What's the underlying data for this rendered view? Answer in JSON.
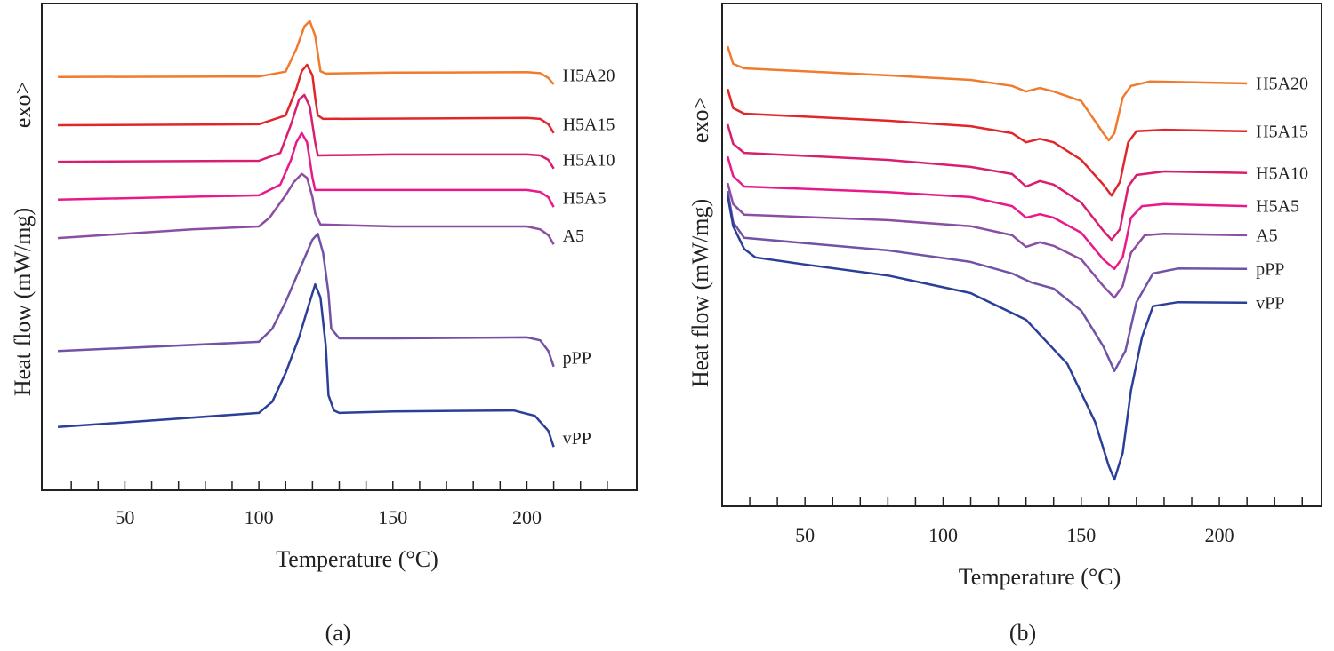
{
  "chart_data": [
    {
      "type": "line",
      "title": "(a)",
      "xlabel": "Temperature (°C)",
      "ylabel": "Heat flow (mW/mg)",
      "annotation": "exo>",
      "xlim": [
        19,
        241
      ],
      "xticks": [
        50,
        100,
        150,
        200
      ],
      "xminorticks": [
        30,
        40,
        60,
        70,
        80,
        90,
        110,
        120,
        130,
        140,
        160,
        170,
        180,
        190,
        210,
        220,
        230
      ],
      "ylim": [
        0,
        100
      ],
      "series": [
        {
          "name": "H5A20",
          "color": "#f07b2c",
          "x": [
            25,
            100,
            110,
            114,
            117,
            119,
            121,
            123,
            125,
            150,
            200,
            205,
            208,
            210
          ],
          "values": [
            84.9,
            85.0,
            86.0,
            90.7,
            95.3,
            96.4,
            93.4,
            86.1,
            85.6,
            85.8,
            85.9,
            85.7,
            84.7,
            83.4
          ]
        },
        {
          "name": "H5A15",
          "color": "#e0262b",
          "x": [
            25,
            100,
            110,
            114,
            116,
            118,
            120,
            121,
            122,
            124,
            200,
            205,
            208,
            210
          ],
          "values": [
            75.0,
            75.2,
            77.0,
            82.5,
            86.1,
            87.4,
            85.2,
            80.7,
            77.0,
            76.3,
            76.5,
            76.3,
            75.2,
            73.4
          ]
        },
        {
          "name": "H5A10",
          "color": "#d81f6f",
          "x": [
            25,
            100,
            108,
            112,
            115,
            117,
            119,
            121,
            122,
            150,
            200,
            205,
            208,
            210
          ],
          "values": [
            67.5,
            67.7,
            69.3,
            75.2,
            80.3,
            81.2,
            78.8,
            71.5,
            68.8,
            69.0,
            69.0,
            68.8,
            67.9,
            66.1
          ]
        },
        {
          "name": "H5A5",
          "color": "#e8198b",
          "x": [
            25,
            100,
            108,
            112,
            114,
            116,
            118,
            120,
            121,
            150,
            200,
            205,
            208,
            210
          ],
          "values": [
            59.7,
            60.6,
            62.8,
            67.9,
            71.5,
            73.4,
            71.5,
            64.2,
            61.7,
            61.7,
            61.7,
            61.3,
            60.2,
            58.2
          ]
        },
        {
          "name": "A5",
          "color": "#8b4ea3",
          "x": [
            25,
            75,
            100,
            104,
            110,
            113,
            116,
            118,
            120,
            121,
            123,
            150,
            200,
            205,
            208,
            210
          ],
          "values": [
            51.8,
            53.6,
            54.2,
            56.0,
            60.6,
            63.3,
            65.0,
            64.2,
            60.2,
            56.9,
            54.6,
            54.2,
            54.2,
            53.6,
            52.4,
            50.5
          ]
        },
        {
          "name": "pPP",
          "color": "#7152a6",
          "x": [
            25,
            100,
            105,
            110,
            115,
            120,
            122,
            124,
            126,
            127,
            130,
            150,
            200,
            205,
            208,
            210
          ],
          "values": [
            28.6,
            30.5,
            33.2,
            38.7,
            45.1,
            51.5,
            52.7,
            48.7,
            40.5,
            33.2,
            31.2,
            31.2,
            31.4,
            30.8,
            28.6,
            25.4
          ]
        },
        {
          "name": "vPP",
          "color": "#2b3f99",
          "x": [
            25,
            100,
            105,
            110,
            115,
            118,
            121,
            123,
            125,
            126,
            128,
            130,
            150,
            195,
            203,
            208,
            210
          ],
          "values": [
            13.0,
            15.9,
            18.2,
            24.1,
            31.4,
            36.9,
            42.3,
            39.6,
            29.6,
            19.5,
            16.4,
            15.9,
            16.2,
            16.4,
            15.3,
            12.2,
            8.9
          ]
        }
      ]
    },
    {
      "type": "line",
      "title": "(b)",
      "xlabel": "Temperature (°C)",
      "ylabel": "Heat flow (mW/mg)",
      "annotation": "exo>",
      "xlim": [
        20,
        237
      ],
      "xticks": [
        50,
        100,
        150,
        200
      ],
      "xminorticks": [
        30,
        40,
        60,
        70,
        80,
        90,
        110,
        120,
        130,
        140,
        160,
        170,
        180,
        190,
        210,
        220,
        230
      ],
      "ylim": [
        0,
        100
      ],
      "series": [
        {
          "name": "H5A20",
          "color": "#f07b2c",
          "x": [
            22,
            24,
            28,
            80,
            110,
            125,
            130,
            135,
            140,
            150,
            158,
            160,
            162,
            165,
            168,
            175,
            210
          ],
          "values": [
            91.5,
            88.0,
            87.1,
            85.7,
            84.8,
            83.6,
            82.5,
            83.2,
            82.5,
            80.6,
            74.2,
            72.8,
            74.2,
            81.3,
            83.6,
            84.5,
            84.1
          ]
        },
        {
          "name": "H5A15",
          "color": "#e0262b",
          "x": [
            22,
            24,
            28,
            80,
            110,
            125,
            130,
            135,
            140,
            150,
            158,
            161,
            164,
            167,
            170,
            180,
            210
          ],
          "values": [
            83.0,
            79.2,
            78.1,
            76.7,
            75.6,
            74.2,
            72.4,
            73.1,
            72.4,
            68.9,
            64.0,
            61.8,
            64.5,
            72.4,
            74.6,
            74.9,
            74.6
          ]
        },
        {
          "name": "H5A10",
          "color": "#d81f6f",
          "x": [
            22,
            24,
            28,
            80,
            110,
            125,
            130,
            135,
            140,
            150,
            158,
            161,
            164,
            167,
            170,
            180,
            210
          ],
          "values": [
            76.0,
            72.1,
            70.3,
            68.9,
            67.5,
            66.1,
            63.6,
            64.7,
            64.0,
            60.4,
            54.8,
            53.0,
            55.1,
            63.6,
            65.9,
            66.6,
            66.3
          ]
        },
        {
          "name": "H5A5",
          "color": "#e8198b",
          "x": [
            22,
            24,
            28,
            80,
            110,
            125,
            130,
            135,
            140,
            150,
            158,
            162,
            165,
            168,
            172,
            180,
            210
          ],
          "values": [
            69.6,
            65.7,
            63.6,
            62.5,
            61.5,
            59.7,
            57.4,
            58.1,
            57.4,
            54.4,
            49.1,
            47.2,
            49.5,
            57.4,
            59.7,
            60.1,
            59.7
          ]
        },
        {
          "name": "A5",
          "color": "#8b4ea3",
          "x": [
            22,
            24,
            28,
            80,
            110,
            125,
            130,
            135,
            140,
            150,
            158,
            162,
            165,
            168,
            173,
            180,
            210
          ],
          "values": [
            64.3,
            60.1,
            58.0,
            56.9,
            55.7,
            53.9,
            51.6,
            52.5,
            51.8,
            49.1,
            43.8,
            41.5,
            43.8,
            50.4,
            53.9,
            54.2,
            53.9
          ]
        },
        {
          "name": "pPP",
          "color": "#7152a6",
          "x": [
            22,
            24,
            28,
            80,
            110,
            125,
            132,
            140,
            150,
            158,
            162,
            166,
            170,
            176,
            185,
            210
          ],
          "values": [
            62.7,
            56.5,
            53.4,
            50.9,
            48.6,
            46.3,
            44.5,
            43.3,
            38.9,
            31.8,
            26.9,
            30.9,
            40.6,
            46.3,
            47.3,
            47.2
          ]
        },
        {
          "name": "vPP",
          "color": "#2b3f99",
          "x": [
            22,
            24,
            28,
            32,
            50,
            80,
            110,
            130,
            145,
            155,
            160,
            162,
            165,
            168,
            172,
            176,
            185,
            210
          ],
          "values": [
            61.8,
            55.7,
            51.2,
            49.5,
            48.1,
            45.9,
            42.4,
            37.1,
            28.3,
            16.8,
            8.0,
            5.3,
            10.6,
            23.0,
            33.6,
            39.8,
            40.6,
            40.5
          ]
        }
      ]
    }
  ]
}
